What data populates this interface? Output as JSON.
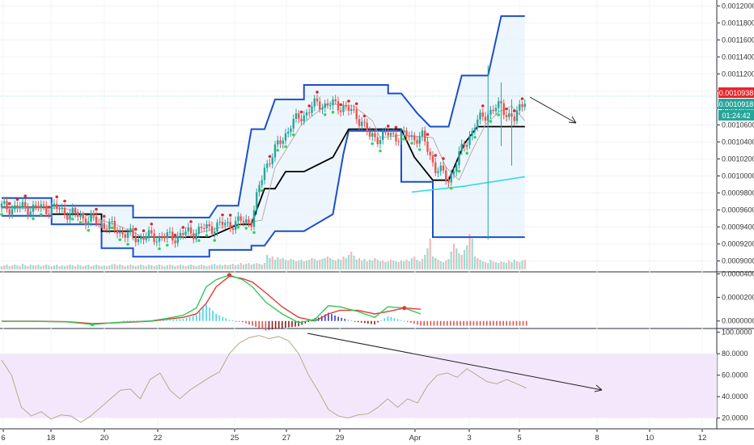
{
  "chart_data": [
    {
      "type": "candlestick",
      "panel": "price",
      "y_ticks": [
        "0.0012000",
        "0.0011800",
        "0.0011600",
        "0.0011400",
        "0.0011200",
        "0.0011000",
        "0.0010800",
        "0.0010600",
        "0.0010400",
        "0.0010200",
        "0.0010000",
        "0.0009800",
        "0.0009600",
        "0.0009400",
        "0.0009200",
        "0.0009000"
      ],
      "ylim": [
        0.00089,
        0.001205
      ],
      "price_labels": [
        {
          "text": "0.0010938",
          "value": 0.0010938,
          "color": "#e8262b"
        },
        {
          "text": "0.0010918",
          "value": 0.0010918,
          "color": "#26a69a"
        },
        {
          "text": "01:24:42",
          "value": 0.0010823,
          "color": "#26a69a"
        }
      ],
      "current_price": 0.0010938,
      "bands": {
        "upper": [
          [
            0,
            0.000974
          ],
          [
            19,
            0.000974
          ],
          [
            19,
            0.000965
          ],
          [
            50,
            0.000965
          ],
          [
            50,
            0.000951
          ],
          [
            79,
            0.000951
          ],
          [
            82,
            0.000965
          ],
          [
            90,
            0.000965
          ],
          [
            95,
            0.001055
          ],
          [
            100,
            0.001055
          ],
          [
            104,
            0.00109
          ],
          [
            115,
            0.00109
          ],
          [
            115,
            0.001107
          ],
          [
            147,
            0.001107
          ],
          [
            147,
            0.001097
          ],
          [
            152,
            0.001097
          ],
          [
            158,
            0.001074
          ],
          [
            163,
            0.001058
          ],
          [
            170,
            0.001058
          ],
          [
            175,
            0.001118
          ],
          [
            185,
            0.001118
          ],
          [
            190,
            0.001188
          ],
          [
            199,
            0.001188
          ]
        ],
        "lower": [
          [
            0,
            0.000953
          ],
          [
            19,
            0.000953
          ],
          [
            19,
            0.000943
          ],
          [
            38,
            0.000943
          ],
          [
            38,
            0.000915
          ],
          [
            50,
            0.000915
          ],
          [
            50,
            0.000905
          ],
          [
            79,
            0.000905
          ],
          [
            79,
            0.000913
          ],
          [
            95,
            0.000913
          ],
          [
            95,
            0.000918
          ],
          [
            100,
            0.000918
          ],
          [
            104,
            0.000935
          ],
          [
            115,
            0.000935
          ],
          [
            126,
            0.000955
          ],
          [
            130,
            0.001026
          ],
          [
            132,
            0.001053
          ],
          [
            152,
            0.001053
          ],
          [
            152,
            0.000993
          ],
          [
            164,
            0.000993
          ],
          [
            164,
            0.000928
          ],
          [
            199,
            0.000928
          ]
        ],
        "basis": [
          [
            0,
            0.000963
          ],
          [
            19,
            0.000963
          ],
          [
            19,
            0.000955
          ],
          [
            38,
            0.000955
          ],
          [
            38,
            0.000935
          ],
          [
            50,
            0.000935
          ],
          [
            50,
            0.000928
          ],
          [
            79,
            0.000928
          ],
          [
            90,
            0.000943
          ],
          [
            95,
            0.000943
          ],
          [
            100,
            0.000985
          ],
          [
            104,
            0.000985
          ],
          [
            108,
            0.001005
          ],
          [
            115,
            0.001005
          ],
          [
            126,
            0.001022
          ],
          [
            132,
            0.001055
          ],
          [
            152,
            0.001055
          ],
          [
            157,
            0.001022
          ],
          [
            164,
            0.000995
          ],
          [
            170,
            0.000995
          ],
          [
            176,
            0.001038
          ],
          [
            181,
            0.001058
          ],
          [
            199,
            0.001058
          ]
        ]
      },
      "cyan_ma": [
        [
          156,
          0.000981
        ],
        [
          176,
          0.000988
        ],
        [
          199,
          0.000999
        ]
      ],
      "key_points": [
        [
          0,
          0.000963
        ],
        [
          20,
          0.000962
        ],
        [
          40,
          0.000942
        ],
        [
          50,
          0.000928
        ],
        [
          65,
          0.000928
        ],
        [
          80,
          0.00094
        ],
        [
          95,
          0.000948
        ],
        [
          100,
          0.00101
        ],
        [
          110,
          0.00106
        ],
        [
          120,
          0.001085
        ],
        [
          130,
          0.001082
        ],
        [
          137,
          0.001065
        ],
        [
          140,
          0.001045
        ],
        [
          148,
          0.001048
        ],
        [
          160,
          0.001045
        ],
        [
          165,
          0.00101
        ],
        [
          170,
          0.000995
        ],
        [
          175,
          0.00103
        ],
        [
          180,
          0.00106
        ],
        [
          185,
          0.001075
        ],
        [
          190,
          0.001082
        ],
        [
          195,
          0.001065
        ],
        [
          199,
          0.001093
        ]
      ],
      "wicks": [
        [
          185,
          0.000925,
          0.00113
        ],
        [
          190,
          0.001035,
          0.00111
        ],
        [
          194,
          0.001012,
          0.00109
        ]
      ],
      "volume": {
        "heights": [
          4,
          5,
          6,
          4,
          5,
          6,
          5,
          4,
          7,
          5,
          4,
          6,
          5,
          5,
          6,
          4,
          5,
          6,
          5,
          4,
          5,
          6,
          4,
          5,
          4,
          5,
          6,
          5,
          4,
          6,
          5,
          4,
          5,
          6,
          4,
          5,
          6,
          5,
          4,
          5,
          4,
          5,
          6,
          7,
          5,
          6,
          5,
          4,
          5,
          6,
          5,
          4,
          5,
          6,
          5,
          4,
          6,
          5,
          4,
          5,
          6,
          5,
          4,
          5,
          6,
          5,
          4,
          5,
          6,
          5,
          4,
          5,
          6,
          5,
          4,
          5,
          6,
          5,
          4,
          5,
          6,
          7,
          5,
          6,
          5,
          6,
          5,
          6,
          7,
          5,
          6,
          8,
          6,
          7,
          8,
          6,
          7,
          8,
          7,
          6,
          8,
          18,
          14,
          16,
          12,
          15,
          13,
          14,
          12,
          11,
          13,
          12,
          10,
          11,
          12,
          10,
          11,
          12,
          14,
          13,
          11,
          12,
          13,
          14,
          16,
          14,
          12,
          11,
          13,
          12,
          16,
          14,
          18,
          22,
          17,
          12,
          14,
          11,
          13,
          10,
          12,
          11,
          14,
          12,
          10,
          11,
          9,
          10,
          12,
          11,
          10,
          9,
          11,
          10,
          12,
          10,
          14,
          16,
          12,
          10,
          13,
          18,
          26,
          38,
          16,
          14,
          12,
          10,
          9,
          11,
          13,
          22,
          32,
          26,
          20,
          18,
          24,
          30,
          44,
          38,
          16,
          14,
          12,
          10,
          9,
          8,
          12,
          10,
          9,
          8,
          10,
          9,
          8,
          11,
          9,
          12,
          10,
          9,
          11,
          12
        ]
      }
    },
    {
      "type": "macd",
      "panel": "macd",
      "y_ticks": [
        "0.0000400",
        "0.0000200",
        "0.0000000"
      ],
      "ylim": [
        -5e-06,
        4.1e-05
      ],
      "macd_line": [
        [
          0,
          -3e-07
        ],
        [
          20,
          -3e-07
        ],
        [
          40,
          -8e-07
        ],
        [
          55,
          -3e-06
        ],
        [
          70,
          -1.2e-06
        ],
        [
          90,
          0.0
        ],
        [
          100,
          2.2e-06
        ],
        [
          110,
          4.8e-06
        ],
        [
          118,
          1.1e-05
        ],
        [
          124,
          2.9e-05
        ],
        [
          130,
          3.5e-05
        ],
        [
          138,
          3.9e-05
        ],
        [
          146,
          3.5e-05
        ],
        [
          152,
          2.9e-05
        ],
        [
          160,
          1.6e-05
        ],
        [
          170,
          6e-06
        ],
        [
          180,
          -1.5e-06
        ],
        [
          190,
          1.5e-06
        ],
        [
          198,
          1.3e-05
        ],
        [
          205,
          1.2e-05
        ],
        [
          216,
          8e-06
        ],
        [
          226,
          3e-06
        ],
        [
          234,
          1.2e-05
        ],
        [
          244,
          1.1e-05
        ],
        [
          254,
          6e-06
        ]
      ],
      "signal_line": [
        [
          0,
          -2e-07
        ],
        [
          20,
          -2e-07
        ],
        [
          40,
          -6e-07
        ],
        [
          55,
          -2.2e-06
        ],
        [
          70,
          -1.5e-06
        ],
        [
          90,
          -2e-07
        ],
        [
          100,
          1.5e-06
        ],
        [
          110,
          3e-06
        ],
        [
          118,
          6e-06
        ],
        [
          124,
          1.5e-05
        ],
        [
          130,
          2.9e-05
        ],
        [
          138,
          3.8e-05
        ],
        [
          146,
          3.6e-05
        ],
        [
          152,
          3.3e-05
        ],
        [
          160,
          2.4e-05
        ],
        [
          170,
          1.2e-05
        ],
        [
          180,
          3e-06
        ],
        [
          190,
          0.0
        ],
        [
          198,
          6e-06
        ],
        [
          205,
          9e-06
        ],
        [
          216,
          9e-06
        ],
        [
          226,
          6e-06
        ],
        [
          234,
          8e-06
        ],
        [
          244,
          1.1e-05
        ],
        [
          254,
          1e-05
        ]
      ]
    },
    {
      "type": "line",
      "panel": "oscillator",
      "y_ticks": [
        "100.0000",
        "80.0000",
        "60.0000",
        "40.0000",
        "20.0000"
      ],
      "ylim": [
        10,
        102
      ],
      "band": [
        20,
        80
      ],
      "values": [
        [
          0,
          74
        ],
        [
          6,
          60
        ],
        [
          12,
          30
        ],
        [
          18,
          22
        ],
        [
          24,
          26
        ],
        [
          30,
          19
        ],
        [
          36,
          23
        ],
        [
          42,
          22
        ],
        [
          48,
          16
        ],
        [
          54,
          22
        ],
        [
          60,
          30
        ],
        [
          66,
          38
        ],
        [
          72,
          46
        ],
        [
          78,
          47
        ],
        [
          84,
          38
        ],
        [
          90,
          56
        ],
        [
          96,
          62
        ],
        [
          102,
          46
        ],
        [
          108,
          38
        ],
        [
          114,
          46
        ],
        [
          120,
          52
        ],
        [
          126,
          58
        ],
        [
          132,
          63
        ],
        [
          138,
          80
        ],
        [
          144,
          90
        ],
        [
          150,
          95
        ],
        [
          156,
          97
        ],
        [
          162,
          94
        ],
        [
          168,
          96
        ],
        [
          174,
          92
        ],
        [
          180,
          80
        ],
        [
          186,
          60
        ],
        [
          192,
          45
        ],
        [
          198,
          28
        ],
        [
          204,
          22
        ],
        [
          210,
          20
        ],
        [
          216,
          23
        ],
        [
          222,
          24
        ],
        [
          228,
          30
        ],
        [
          234,
          38
        ],
        [
          240,
          30
        ],
        [
          246,
          38
        ],
        [
          252,
          34
        ],
        [
          258,
          50
        ],
        [
          264,
          60
        ],
        [
          270,
          62
        ],
        [
          276,
          58
        ],
        [
          282,
          66
        ],
        [
          288,
          60
        ],
        [
          294,
          54
        ],
        [
          300,
          52
        ],
        [
          306,
          56
        ],
        [
          312,
          52
        ],
        [
          318,
          48
        ]
      ]
    }
  ],
  "x_axis": {
    "ticks": [
      "6",
      "18",
      "20",
      "22",
      "25",
      "27",
      "29",
      "Apr",
      "3",
      "5",
      "8",
      "10",
      "12"
    ]
  }
}
